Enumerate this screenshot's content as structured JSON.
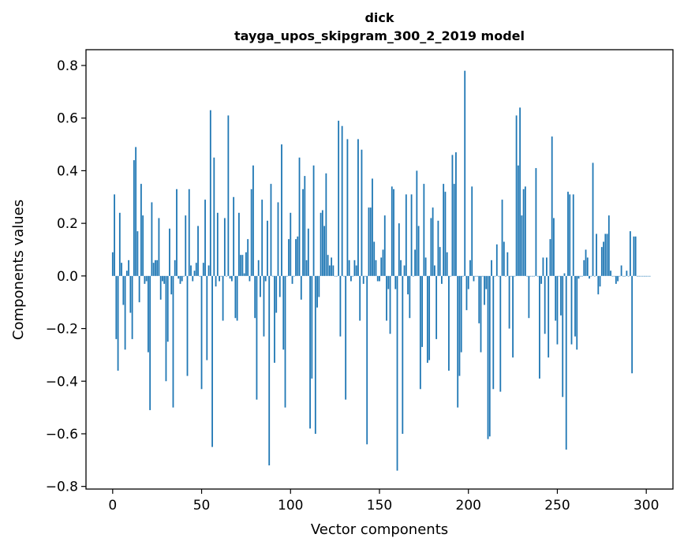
{
  "chart_data": {
    "type": "bar",
    "title": "dick",
    "subtitle": "tayga_upos_skipgram_300_2_2019 model",
    "xlabel": "Vector components",
    "ylabel": "Components values",
    "xlim": [
      -15,
      315
    ],
    "ylim": [
      -0.81,
      0.86
    ],
    "xticks": [
      0,
      50,
      100,
      150,
      200,
      250,
      300
    ],
    "yticks": [
      -0.8,
      -0.6,
      -0.4,
      -0.2,
      0.0,
      0.2,
      0.4,
      0.6,
      0.8
    ],
    "xtick_labels": [
      "0",
      "50",
      "100",
      "150",
      "200",
      "250",
      "300"
    ],
    "ytick_labels": [
      "−0.8",
      "−0.6",
      "−0.4",
      "−0.2",
      "0.0",
      "0.2",
      "0.4",
      "0.6",
      "0.8"
    ],
    "bar_color": "#1f77b4",
    "values": [
      0.09,
      0.31,
      -0.24,
      -0.36,
      0.24,
      0.05,
      -0.11,
      -0.28,
      0.02,
      0.06,
      -0.14,
      -0.24,
      0.44,
      0.49,
      0.17,
      -0.1,
      0.35,
      0.23,
      -0.03,
      -0.02,
      -0.29,
      -0.51,
      0.28,
      0.05,
      0.06,
      0.06,
      0.22,
      -0.09,
      -0.02,
      -0.03,
      -0.4,
      -0.25,
      0.18,
      -0.07,
      -0.5,
      0.06,
      0.33,
      -0.01,
      -0.03,
      -0.02,
      0.0,
      0.23,
      -0.38,
      0.33,
      0.04,
      -0.02,
      0.02,
      0.05,
      0.19,
      0.0,
      -0.43,
      0.05,
      0.29,
      -0.32,
      0.04,
      0.63,
      -0.65,
      0.45,
      -0.04,
      0.24,
      -0.02,
      0.0,
      -0.17,
      0.22,
      0.0,
      0.61,
      -0.01,
      -0.02,
      0.3,
      -0.16,
      -0.17,
      0.24,
      0.08,
      0.08,
      0.01,
      0.09,
      0.14,
      -0.02,
      0.33,
      0.42,
      -0.16,
      -0.47,
      0.06,
      -0.08,
      0.29,
      -0.23,
      -0.02,
      0.21,
      -0.72,
      0.35,
      0.0,
      -0.33,
      -0.14,
      0.28,
      -0.08,
      0.5,
      -0.28,
      -0.5,
      0.0,
      0.14,
      0.24,
      -0.03,
      0.0,
      0.14,
      0.15,
      0.45,
      -0.09,
      0.33,
      0.38,
      0.06,
      0.18,
      -0.58,
      -0.39,
      0.42,
      -0.6,
      -0.12,
      -0.08,
      0.24,
      0.25,
      0.19,
      0.39,
      0.08,
      0.04,
      0.07,
      0.04,
      0.0,
      0.0,
      0.59,
      -0.23,
      0.57,
      0.0,
      -0.47,
      0.52,
      0.06,
      -0.02,
      0.0,
      0.06,
      0.04,
      0.52,
      -0.17,
      0.48,
      -0.03,
      0.0,
      -0.64,
      0.26,
      0.26,
      0.37,
      0.13,
      0.06,
      -0.02,
      -0.02,
      0.07,
      0.1,
      0.23,
      -0.17,
      -0.05,
      -0.22,
      0.34,
      0.33,
      -0.05,
      -0.74,
      0.2,
      0.06,
      -0.6,
      0.04,
      0.31,
      -0.07,
      -0.16,
      0.31,
      0.0,
      0.1,
      0.4,
      0.19,
      -0.43,
      -0.27,
      0.35,
      0.07,
      -0.33,
      -0.32,
      0.22,
      0.26,
      0.04,
      -0.24,
      0.21,
      0.11,
      -0.03,
      0.35,
      0.32,
      0.09,
      -0.36,
      0.0,
      0.46,
      0.35,
      0.47,
      -0.5,
      -0.38,
      -0.29,
      0.0,
      0.78,
      -0.13,
      -0.05,
      0.06,
      0.34,
      -0.02,
      0.0,
      0.0,
      -0.18,
      -0.29,
      0.0,
      -0.11,
      -0.05,
      -0.62,
      -0.61,
      0.06,
      -0.43,
      0.0,
      0.12,
      0.0,
      -0.44,
      0.29,
      0.13,
      0.0,
      0.09,
      -0.2,
      0.0,
      -0.31,
      0.0,
      0.61,
      0.42,
      0.64,
      0.23,
      0.33,
      0.34,
      0.0,
      -0.16,
      0.0,
      0.0,
      0.0,
      0.41,
      0.0,
      -0.39,
      -0.03,
      0.07,
      -0.22,
      0.07,
      -0.31,
      0.14,
      0.53,
      0.22,
      -0.17,
      -0.26,
      0.0,
      -0.15,
      -0.46,
      0.01,
      -0.66,
      0.32,
      0.31,
      -0.26,
      0.31,
      -0.23,
      -0.28,
      -0.01,
      0.0,
      0.0,
      0.06,
      0.1,
      0.07,
      -0.01,
      0.0,
      0.43,
      0.0,
      0.16,
      -0.07,
      -0.04,
      0.11,
      0.13,
      0.16,
      0.16,
      0.23,
      0.02,
      0.0,
      0.0,
      -0.03,
      -0.02,
      0.0,
      0.04,
      0.0,
      0.0,
      0.02,
      0.0,
      0.17,
      -0.37,
      0.15,
      0.15,
      0.0,
      0.0,
      0.0,
      0.0,
      0.0,
      0.0,
      0.0,
      0.0
    ]
  }
}
